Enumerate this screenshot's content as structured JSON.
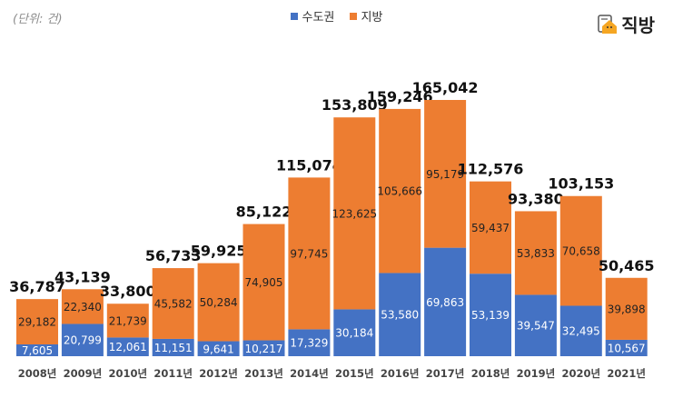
{
  "unit_label": "(단위: 건)",
  "logo": "직방",
  "colors": {
    "capital": "#4472C4",
    "local": "#ED7D31"
  },
  "chart_data": {
    "type": "bar",
    "stacked": true,
    "categories": [
      "2008년",
      "2009년",
      "2010년",
      "2011년",
      "2012년",
      "2013년",
      "2014년",
      "2015년",
      "2016년",
      "2017년",
      "2018년",
      "2019년",
      "2020년",
      "2021년"
    ],
    "series": [
      {
        "name": "수도권",
        "values": [
          7605,
          20799,
          12061,
          11151,
          9641,
          10217,
          17329,
          30184,
          53580,
          69863,
          53139,
          39547,
          32495,
          10567
        ]
      },
      {
        "name": "지방",
        "values": [
          29182,
          22340,
          21739,
          45582,
          50284,
          74905,
          97745,
          123625,
          105666,
          95179,
          59437,
          53833,
          70658,
          39898
        ]
      }
    ],
    "totals": [
      36787,
      43139,
      33800,
      56733,
      59925,
      85122,
      115074,
      153809,
      159246,
      165042,
      112576,
      93380,
      103153,
      50465
    ],
    "legend": "top-center",
    "grid": false,
    "ylim": [
      0,
      165042
    ]
  }
}
